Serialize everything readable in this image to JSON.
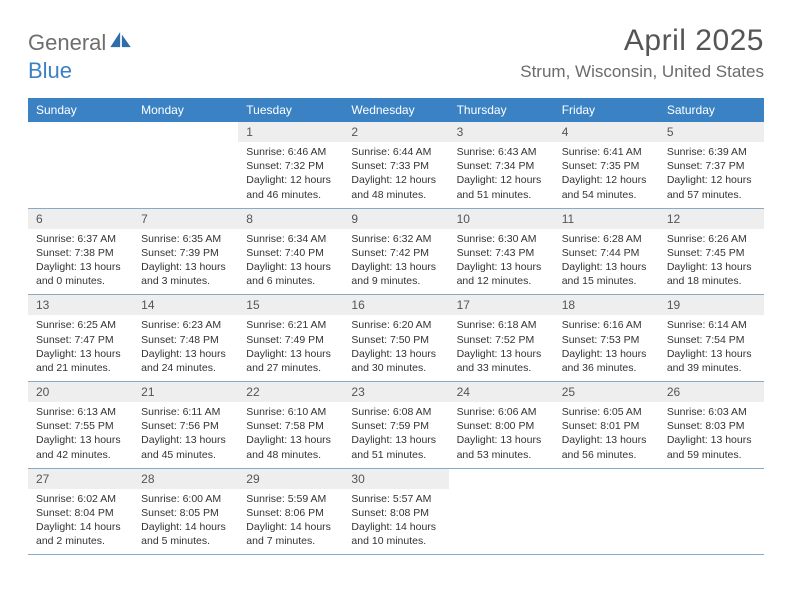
{
  "brand": {
    "part1": "General",
    "part2": "Blue"
  },
  "title": "April 2025",
  "location": "Strum, Wisconsin, United States",
  "colors": {
    "header_bg": "#3b82c4",
    "header_text": "#ffffff",
    "daynum_bg": "#eeeeee",
    "text": "#333333",
    "separator": "#3b6fa0",
    "brand_gray": "#6e6e6e",
    "brand_blue": "#3b82c4"
  },
  "day_names": [
    "Sunday",
    "Monday",
    "Tuesday",
    "Wednesday",
    "Thursday",
    "Friday",
    "Saturday"
  ],
  "weeks": [
    [
      null,
      null,
      {
        "n": "1",
        "sr": "6:46 AM",
        "ss": "7:32 PM",
        "dl": "12 hours and 46 minutes."
      },
      {
        "n": "2",
        "sr": "6:44 AM",
        "ss": "7:33 PM",
        "dl": "12 hours and 48 minutes."
      },
      {
        "n": "3",
        "sr": "6:43 AM",
        "ss": "7:34 PM",
        "dl": "12 hours and 51 minutes."
      },
      {
        "n": "4",
        "sr": "6:41 AM",
        "ss": "7:35 PM",
        "dl": "12 hours and 54 minutes."
      },
      {
        "n": "5",
        "sr": "6:39 AM",
        "ss": "7:37 PM",
        "dl": "12 hours and 57 minutes."
      }
    ],
    [
      {
        "n": "6",
        "sr": "6:37 AM",
        "ss": "7:38 PM",
        "dl": "13 hours and 0 minutes."
      },
      {
        "n": "7",
        "sr": "6:35 AM",
        "ss": "7:39 PM",
        "dl": "13 hours and 3 minutes."
      },
      {
        "n": "8",
        "sr": "6:34 AM",
        "ss": "7:40 PM",
        "dl": "13 hours and 6 minutes."
      },
      {
        "n": "9",
        "sr": "6:32 AM",
        "ss": "7:42 PM",
        "dl": "13 hours and 9 minutes."
      },
      {
        "n": "10",
        "sr": "6:30 AM",
        "ss": "7:43 PM",
        "dl": "13 hours and 12 minutes."
      },
      {
        "n": "11",
        "sr": "6:28 AM",
        "ss": "7:44 PM",
        "dl": "13 hours and 15 minutes."
      },
      {
        "n": "12",
        "sr": "6:26 AM",
        "ss": "7:45 PM",
        "dl": "13 hours and 18 minutes."
      }
    ],
    [
      {
        "n": "13",
        "sr": "6:25 AM",
        "ss": "7:47 PM",
        "dl": "13 hours and 21 minutes."
      },
      {
        "n": "14",
        "sr": "6:23 AM",
        "ss": "7:48 PM",
        "dl": "13 hours and 24 minutes."
      },
      {
        "n": "15",
        "sr": "6:21 AM",
        "ss": "7:49 PM",
        "dl": "13 hours and 27 minutes."
      },
      {
        "n": "16",
        "sr": "6:20 AM",
        "ss": "7:50 PM",
        "dl": "13 hours and 30 minutes."
      },
      {
        "n": "17",
        "sr": "6:18 AM",
        "ss": "7:52 PM",
        "dl": "13 hours and 33 minutes."
      },
      {
        "n": "18",
        "sr": "6:16 AM",
        "ss": "7:53 PM",
        "dl": "13 hours and 36 minutes."
      },
      {
        "n": "19",
        "sr": "6:14 AM",
        "ss": "7:54 PM",
        "dl": "13 hours and 39 minutes."
      }
    ],
    [
      {
        "n": "20",
        "sr": "6:13 AM",
        "ss": "7:55 PM",
        "dl": "13 hours and 42 minutes."
      },
      {
        "n": "21",
        "sr": "6:11 AM",
        "ss": "7:56 PM",
        "dl": "13 hours and 45 minutes."
      },
      {
        "n": "22",
        "sr": "6:10 AM",
        "ss": "7:58 PM",
        "dl": "13 hours and 48 minutes."
      },
      {
        "n": "23",
        "sr": "6:08 AM",
        "ss": "7:59 PM",
        "dl": "13 hours and 51 minutes."
      },
      {
        "n": "24",
        "sr": "6:06 AM",
        "ss": "8:00 PM",
        "dl": "13 hours and 53 minutes."
      },
      {
        "n": "25",
        "sr": "6:05 AM",
        "ss": "8:01 PM",
        "dl": "13 hours and 56 minutes."
      },
      {
        "n": "26",
        "sr": "6:03 AM",
        "ss": "8:03 PM",
        "dl": "13 hours and 59 minutes."
      }
    ],
    [
      {
        "n": "27",
        "sr": "6:02 AM",
        "ss": "8:04 PM",
        "dl": "14 hours and 2 minutes."
      },
      {
        "n": "28",
        "sr": "6:00 AM",
        "ss": "8:05 PM",
        "dl": "14 hours and 5 minutes."
      },
      {
        "n": "29",
        "sr": "5:59 AM",
        "ss": "8:06 PM",
        "dl": "14 hours and 7 minutes."
      },
      {
        "n": "30",
        "sr": "5:57 AM",
        "ss": "8:08 PM",
        "dl": "14 hours and 10 minutes."
      },
      null,
      null,
      null
    ]
  ],
  "labels": {
    "sunrise": "Sunrise:",
    "sunset": "Sunset:",
    "daylight": "Daylight:"
  }
}
